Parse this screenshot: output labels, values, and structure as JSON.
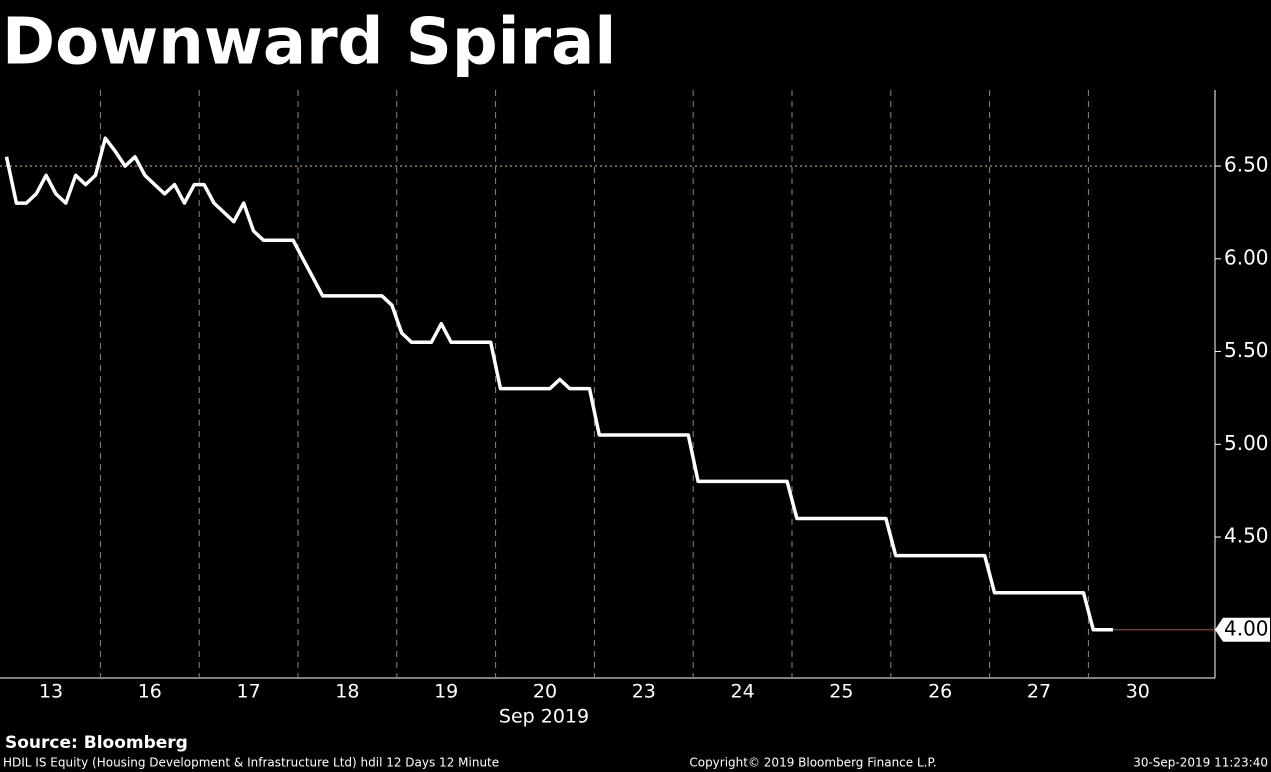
{
  "chart_data": {
    "type": "line",
    "title": "Downward Spiral",
    "x_sublabel": "Sep 2019",
    "source": "Source: Bloomberg",
    "footer_left": "HDIL IS Equity (Housing Development & Infrastructure Ltd) hdil 12 Days 12 Minute",
    "footer_center": "Copyright© 2019 Bloomberg Finance L.P.",
    "footer_right": "30-Sep-2019 11:23:40",
    "categories": [
      "13",
      "16",
      "17",
      "18",
      "19",
      "20",
      "23",
      "24",
      "25",
      "26",
      "27",
      "30"
    ],
    "series": [
      {
        "color": "#ffffff",
        "values": [
          [
            6.55,
            6.3,
            6.3,
            6.35,
            6.45,
            6.35,
            6.3,
            6.45,
            6.4,
            6.45
          ],
          [
            6.65,
            6.58,
            6.5,
            6.55,
            6.45,
            6.4,
            6.35,
            6.4,
            6.3,
            6.4
          ],
          [
            6.4,
            6.3,
            6.25,
            6.2,
            6.3,
            6.15,
            6.1,
            6.1,
            6.1,
            6.1
          ],
          [
            6.0,
            5.9,
            5.8,
            5.8,
            5.8,
            5.8,
            5.8,
            5.8,
            5.8,
            5.75
          ],
          [
            5.6,
            5.55,
            5.55,
            5.55,
            5.65,
            5.55,
            5.55,
            5.55,
            5.55,
            5.55
          ],
          [
            5.3,
            5.3,
            5.3,
            5.3,
            5.3,
            5.3,
            5.35,
            5.3,
            5.3,
            5.3
          ],
          [
            5.05,
            5.05,
            5.05,
            5.05,
            5.05,
            5.05,
            5.05,
            5.05,
            5.05,
            5.05
          ],
          [
            4.8,
            4.8,
            4.8,
            4.8,
            4.8,
            4.8,
            4.8,
            4.8,
            4.8,
            4.8
          ],
          [
            4.6,
            4.6,
            4.6,
            4.6,
            4.6,
            4.6,
            4.6,
            4.6,
            4.6,
            4.6
          ],
          [
            4.4,
            4.4,
            4.4,
            4.4,
            4.4,
            4.4,
            4.4,
            4.4,
            4.4,
            4.4
          ],
          [
            4.2,
            4.2,
            4.2,
            4.2,
            4.2,
            4.2,
            4.2,
            4.2,
            4.2,
            4.2
          ],
          [
            4.0,
            4.0,
            4.0
          ]
        ]
      }
    ],
    "reference_line": {
      "value": 6.5,
      "color": "#e8a060"
    },
    "ylim": [
      3.74,
      6.91
    ],
    "yticks": [
      {
        "value": 4,
        "label": "4.00"
      },
      {
        "value": 4.5,
        "label": "4.50"
      },
      {
        "value": 5,
        "label": "5.00"
      },
      {
        "value": 5.5,
        "label": "5.50"
      },
      {
        "value": 6,
        "label": "6.00"
      },
      {
        "value": 6.5,
        "label": "6.50"
      }
    ],
    "grid": true
  }
}
